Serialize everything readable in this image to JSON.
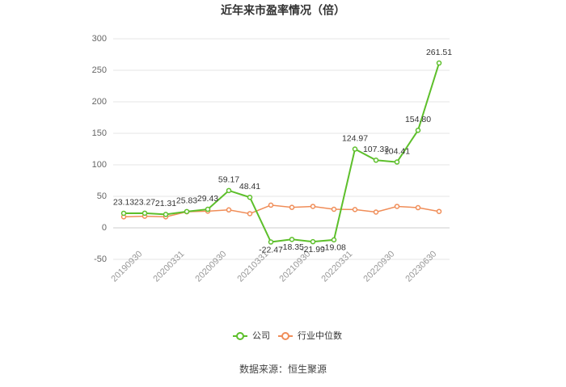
{
  "chart_data": {
    "type": "line",
    "title": "近年来市盈率情况（倍）",
    "categories": [
      "20190930",
      null,
      "20200331",
      null,
      "20200930",
      null,
      "20210331",
      null,
      "20210930",
      null,
      "20220331",
      null,
      "20220930",
      null,
      "20230630",
      null
    ],
    "series": [
      {
        "name": "公司",
        "color": "#5dbf2b",
        "values": [
          23.13,
          23.27,
          21.31,
          25.83,
          29.43,
          59.17,
          48.41,
          -22.47,
          -18.35,
          -21.99,
          -19.08,
          124.97,
          107.33,
          104.41,
          154.8,
          261.51
        ],
        "value_labels": [
          "23.13",
          "23.27",
          "21.31",
          "25.83",
          "29.43",
          "59.17",
          "48.41",
          "-22.47",
          "-18.35",
          "-21.99",
          "-19.08",
          "124.97",
          "107.33",
          "104.41",
          "154.80",
          "261.51"
        ]
      },
      {
        "name": "行业中位数",
        "color": "#f08d58",
        "values": [
          17.5,
          18.5,
          17.5,
          25.5,
          26.5,
          28.5,
          22.5,
          36,
          32.5,
          34,
          29.5,
          29,
          25,
          34,
          32,
          26
        ]
      }
    ],
    "ylim": [
      -50,
      300
    ],
    "yticks": [
      -50,
      0,
      50,
      100,
      150,
      200,
      250,
      300
    ],
    "grid": true,
    "source": "数据来源：恒生聚源"
  }
}
